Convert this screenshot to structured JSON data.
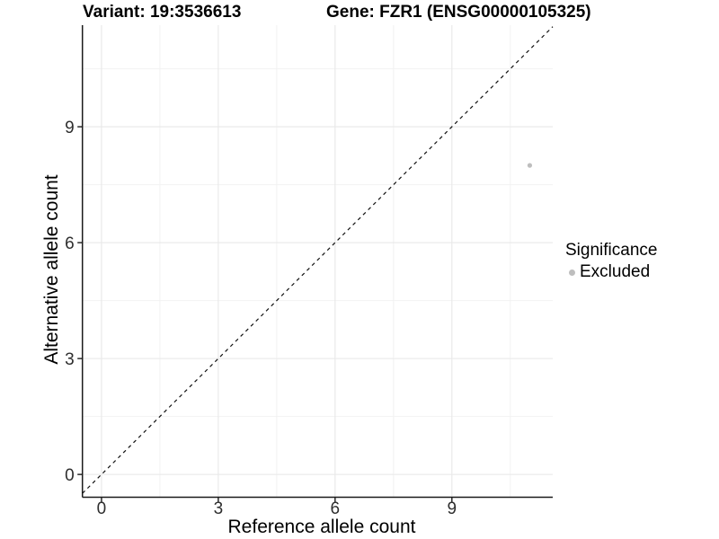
{
  "chart_data": {
    "type": "scatter",
    "title_left": "Variant: 19:3536613",
    "title_right": "Gene: FZR1 (ENSG00000105325)",
    "xlabel": "Reference allele count",
    "ylabel": "Alternative allele count",
    "xlim": [
      -0.49,
      11.59
    ],
    "ylim": [
      -0.59,
      11.63
    ],
    "x_ticks": [
      0,
      3,
      6,
      9
    ],
    "y_ticks": [
      0,
      3,
      6,
      9
    ],
    "x_minor_ticks": [
      1.5,
      4.5,
      7.5,
      10.5
    ],
    "y_minor_ticks": [
      1.5,
      4.5,
      7.5,
      10.5
    ],
    "grid": true,
    "series": [
      {
        "name": "Excluded",
        "color": "#bebebe",
        "points": [
          {
            "x": 11,
            "y": 8
          }
        ]
      }
    ],
    "reference_line": {
      "type": "identity",
      "slope": 1,
      "intercept": 0,
      "style": "dashed",
      "color": "#111111"
    },
    "legend": {
      "title": "Significance",
      "position": "right"
    }
  },
  "style": {
    "background": "#ffffff",
    "axis_line": "#1a1a1a",
    "tick_label_color": "#2e2e2e",
    "grid_major": "#e8e8e8",
    "grid_minor": "#f2f2f2"
  }
}
